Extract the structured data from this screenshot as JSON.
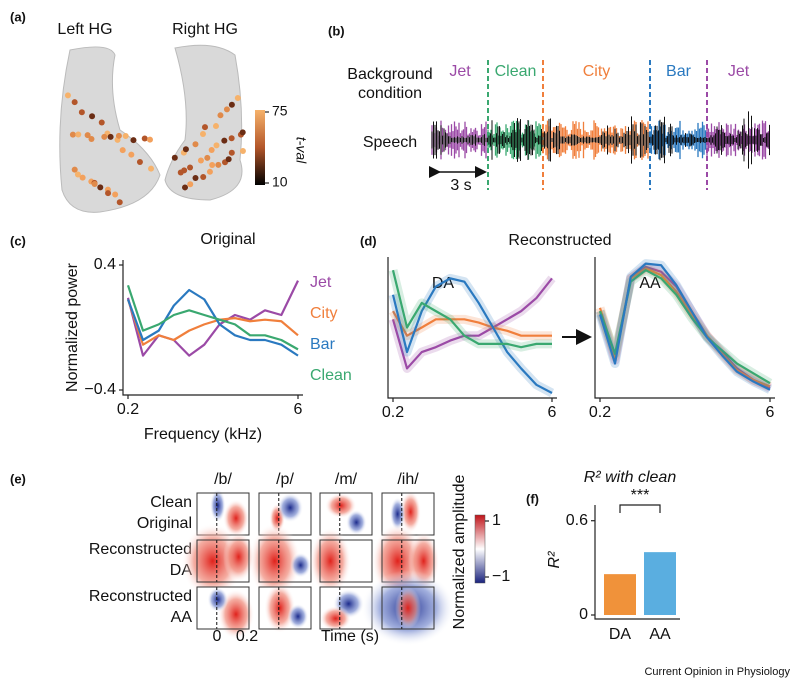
{
  "panel_labels": [
    "(a)",
    "(b)",
    "(c)",
    "(d)",
    "(e)",
    "(f)"
  ],
  "panel_a": {
    "left_title": "Left HG",
    "right_title": "Right HG",
    "colorbar_label": "t-val",
    "colorbar_ticks": [
      75,
      10
    ]
  },
  "panel_b": {
    "row_label_1": "Background",
    "row_label_2": "condition",
    "speech_label": "Speech",
    "scale_bar": "3 s",
    "conditions": [
      {
        "name": "Jet",
        "color": "#9b4aa6"
      },
      {
        "name": "Clean",
        "color": "#3aa870"
      },
      {
        "name": "City",
        "color": "#f07f3c"
      },
      {
        "name": "Bar",
        "color": "#2a79c0"
      },
      {
        "name": "Jet",
        "color": "#9b4aa6"
      }
    ]
  },
  "panel_d": {
    "title": "Reconstructed"
  },
  "panel_e": {
    "phonemes": [
      "/b/",
      "/p/",
      "/m/",
      "/ih/"
    ],
    "row_labels": [
      [
        "Clean",
        "Original"
      ],
      [
        "Reconstructed",
        "DA"
      ],
      [
        "Reconstructed",
        "AA"
      ]
    ],
    "colorbar_label": "Normalized amplitude",
    "colorbar_ticks": [
      1,
      {
        "value": -1,
        "label": "−1"
      }
    ],
    "x_ticks": [
      0,
      0.2
    ],
    "x_label": "Time (s)"
  },
  "chart_data": [
    {
      "type": "line",
      "title": "Original",
      "xlabel": "Frequency (kHz)",
      "ylabel": "Normalized power",
      "x": [
        0.2,
        0.27,
        0.37,
        0.5,
        0.68,
        0.92,
        1.25,
        1.7,
        2.3,
        3.1,
        4.3,
        6
      ],
      "xlog": true,
      "xlim": [
        0.2,
        6
      ],
      "xticks": [
        0.2,
        6
      ],
      "ylim": [
        -0.4,
        0.4
      ],
      "yticks": [
        0.4,
        {
          "value": -0.4,
          "label": "−0.4"
        }
      ],
      "legend": "right",
      "series": [
        {
          "name": "Jet",
          "color": "#9b4aa6",
          "values": [
            0.19,
            -0.18,
            -0.05,
            -0.08,
            -0.18,
            -0.11,
            0.02,
            0.08,
            0.05,
            0.11,
            0.08,
            0.3
          ]
        },
        {
          "name": "City",
          "color": "#f07f3c",
          "values": [
            0.18,
            -0.11,
            -0.05,
            -0.08,
            -0.02,
            0.02,
            0.05,
            0.06,
            0.04,
            0.05,
            0.04,
            -0.05
          ]
        },
        {
          "name": "Bar",
          "color": "#2a79c0",
          "values": [
            0.18,
            -0.08,
            -0.02,
            0.14,
            0.24,
            0.18,
            0.02,
            -0.05,
            -0.08,
            -0.08,
            -0.11,
            -0.18
          ]
        },
        {
          "name": "Clean",
          "color": "#3aa870",
          "values": [
            0.27,
            -0.02,
            0.02,
            0.08,
            0.11,
            0.08,
            0.05,
            0.02,
            -0.05,
            -0.05,
            -0.08,
            -0.14
          ]
        }
      ]
    },
    {
      "type": "line",
      "title": "DA",
      "x": [
        0.2,
        0.27,
        0.37,
        0.5,
        0.68,
        0.92,
        1.25,
        1.7,
        2.3,
        3.1,
        4.3,
        6
      ],
      "xlog": true,
      "xlim": [
        0.2,
        6
      ],
      "xticks": [
        0.2,
        6
      ],
      "ylim": [
        -0.4,
        0.4
      ],
      "series": [
        {
          "color": "#9b4aa6",
          "values": [
            0.05,
            -0.25,
            -0.15,
            -0.12,
            -0.08,
            -0.05,
            -0.05,
            0.0,
            0.05,
            0.1,
            0.18,
            0.3
          ]
        },
        {
          "color": "#f07f3c",
          "values": [
            0.1,
            -0.05,
            0.0,
            0.05,
            0.05,
            0.05,
            0.03,
            0.0,
            -0.02,
            -0.05,
            -0.05,
            -0.05
          ]
        },
        {
          "color": "#2a79c0",
          "values": [
            0.2,
            -0.15,
            0.1,
            0.25,
            0.3,
            0.28,
            0.15,
            0.0,
            -0.15,
            -0.25,
            -0.35,
            -0.4
          ]
        },
        {
          "color": "#3aa870",
          "values": [
            0.35,
            0.0,
            0.15,
            0.1,
            0.05,
            -0.05,
            -0.1,
            -0.1,
            -0.1,
            -0.12,
            -0.1,
            -0.1
          ]
        }
      ]
    },
    {
      "type": "line",
      "title": "AA",
      "x": [
        0.2,
        0.27,
        0.37,
        0.5,
        0.68,
        0.92,
        1.25,
        1.7,
        2.3,
        3.1,
        4.3,
        6
      ],
      "xlog": true,
      "xlim": [
        0.2,
        6
      ],
      "xticks": [
        0.2,
        6
      ],
      "ylim": [
        -0.4,
        0.4
      ],
      "series": [
        {
          "color": "#9b4aa6",
          "values": [
            0.1,
            -0.2,
            0.3,
            0.37,
            0.34,
            0.25,
            0.1,
            -0.05,
            -0.15,
            -0.25,
            -0.32,
            -0.37
          ]
        },
        {
          "color": "#f07f3c",
          "values": [
            0.12,
            -0.18,
            0.3,
            0.36,
            0.32,
            0.22,
            0.08,
            -0.05,
            -0.16,
            -0.26,
            -0.32,
            -0.36
          ]
        },
        {
          "color": "#3aa870",
          "values": [
            0.1,
            -0.16,
            0.28,
            0.35,
            0.3,
            0.2,
            0.06,
            -0.06,
            -0.14,
            -0.22,
            -0.28,
            -0.34
          ]
        },
        {
          "color": "#2a79c0",
          "values": [
            0.08,
            -0.22,
            0.31,
            0.39,
            0.38,
            0.26,
            0.1,
            -0.06,
            -0.17,
            -0.27,
            -0.33,
            -0.38
          ]
        }
      ]
    },
    {
      "type": "bar",
      "title": "R² with clean",
      "ylabel": "R²",
      "annotation": "***",
      "categories": [
        "DA",
        "AA"
      ],
      "values": [
        0.26,
        0.4
      ],
      "colors": [
        "#f0923a",
        "#5aaee0"
      ],
      "ylim": [
        0,
        0.7
      ],
      "yticks": [
        0,
        0.6
      ]
    }
  ],
  "footer": "Current Opinion in Physiology"
}
